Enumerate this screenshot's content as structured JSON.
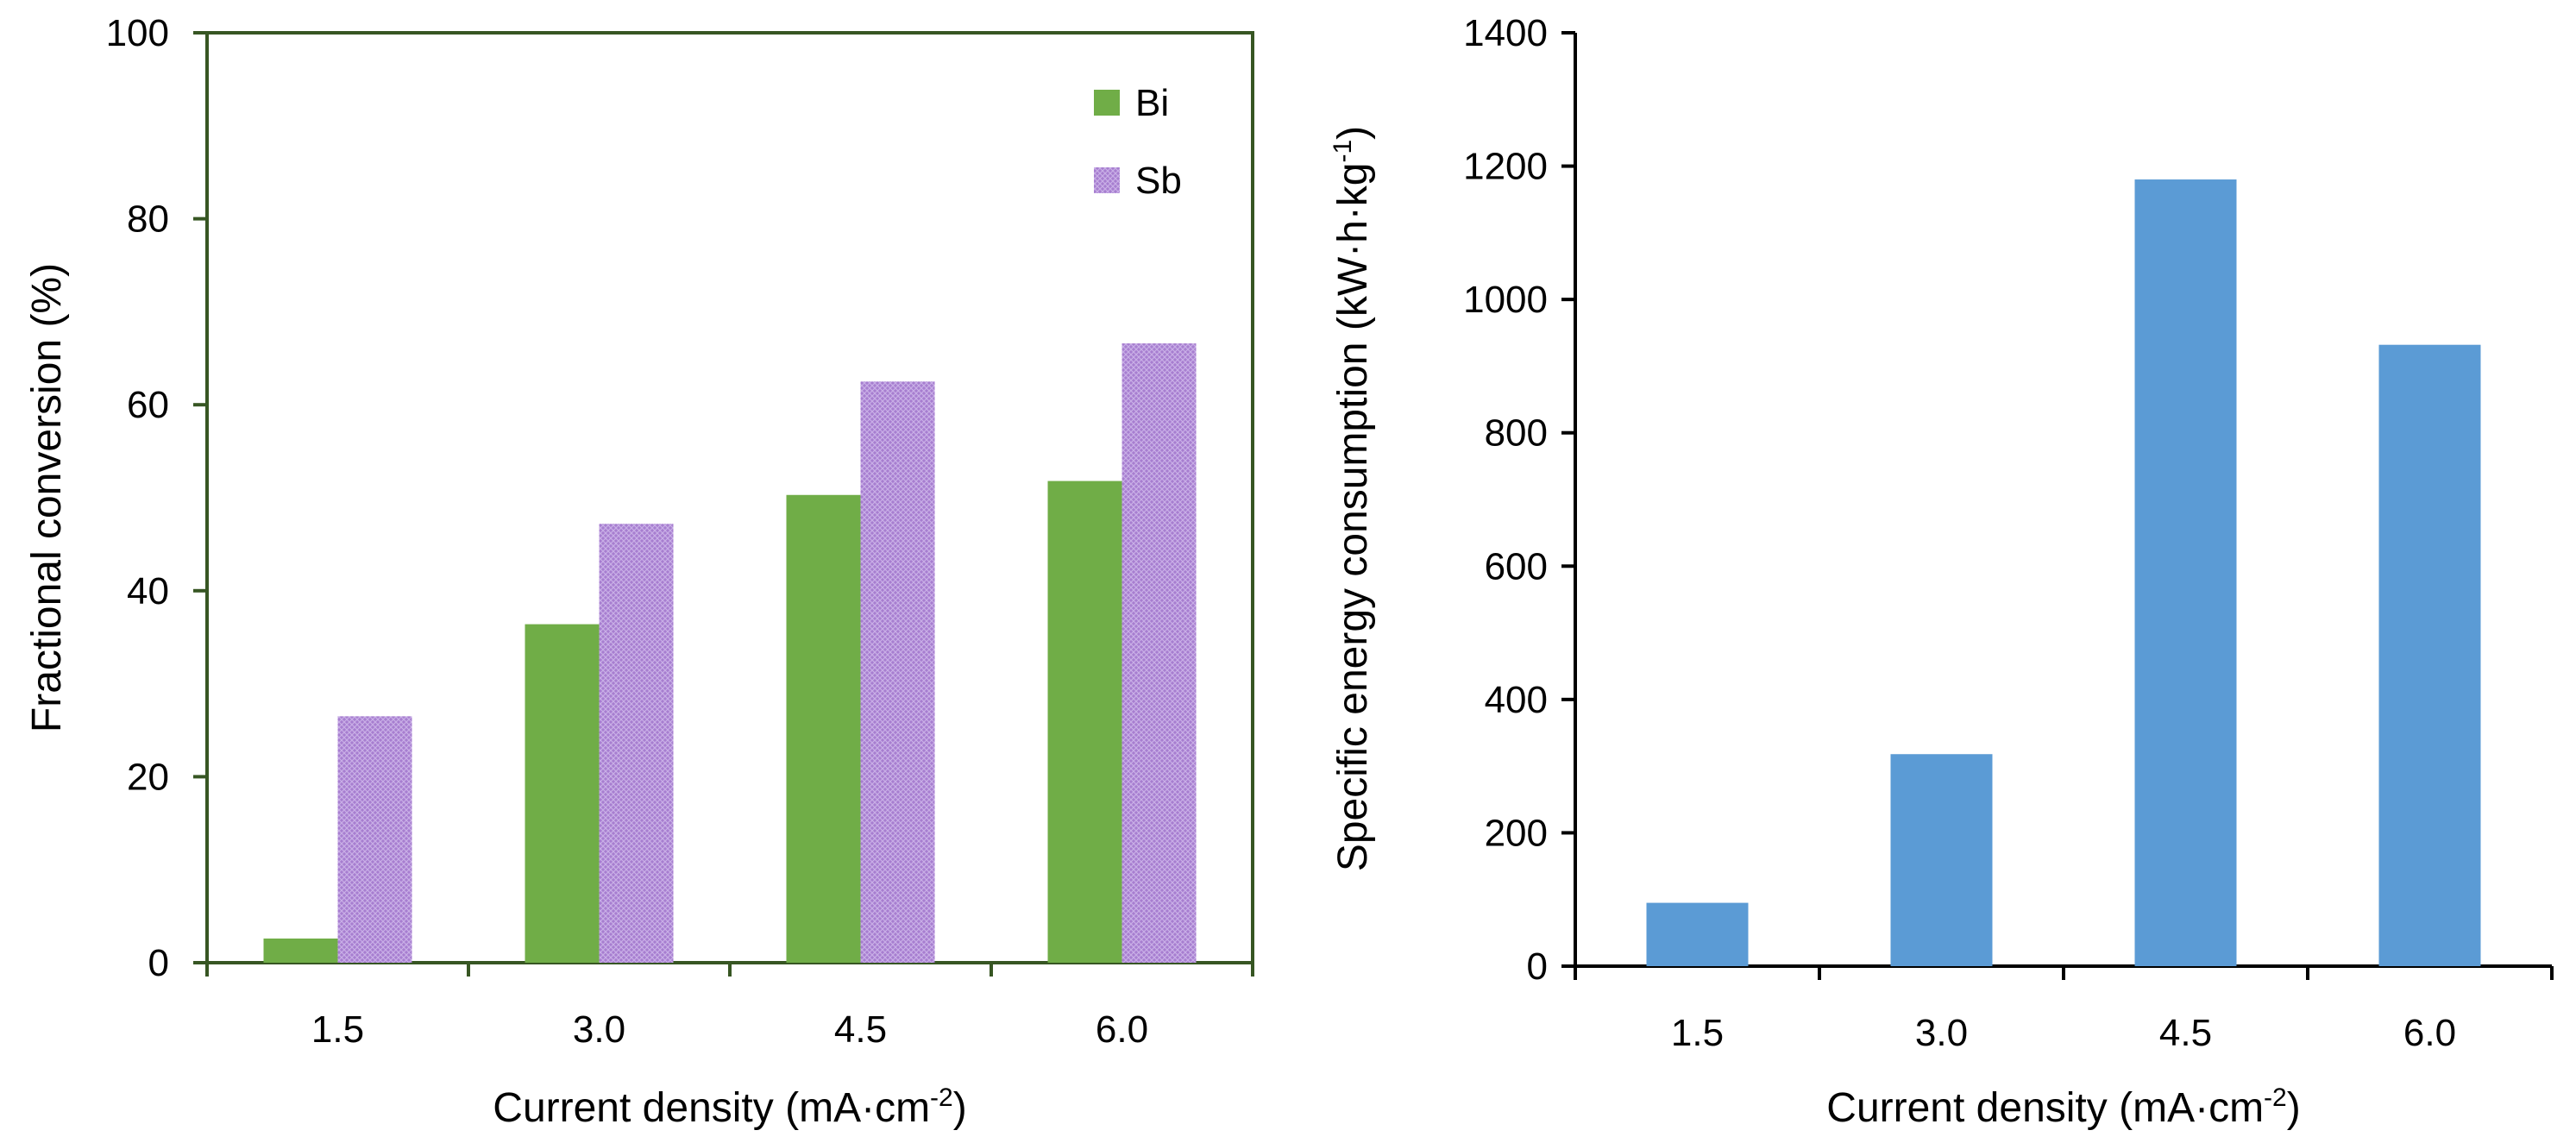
{
  "chart_data": [
    {
      "type": "bar",
      "categories": [
        "1.5",
        "3.0",
        "4.5",
        "6.0"
      ],
      "series": [
        {
          "name": "Bi",
          "values": [
            2.6,
            36.4,
            50.3,
            51.8
          ],
          "color": "#70ad47"
        },
        {
          "name": "Sb",
          "values": [
            26.5,
            47.2,
            62.5,
            66.6
          ],
          "color": "#a77ed0",
          "pattern": "crosshatch"
        }
      ],
      "title": "",
      "xlabel": {
        "main": "Current density (mA·cm",
        "sup": "-2",
        "tail": ")"
      },
      "ylabel": {
        "main": "Fractional conversion (%)",
        "sup": "",
        "tail": ""
      },
      "ylim": [
        0,
        100
      ],
      "yticks": [
        0,
        20,
        40,
        60,
        80,
        100
      ],
      "frame_color": "#375623",
      "grid": false,
      "legend_position": "top-right"
    },
    {
      "type": "bar",
      "categories": [
        "1.5",
        "3.0",
        "4.5",
        "6.0"
      ],
      "series": [
        {
          "name": "Specific energy consumption",
          "values": [
            95,
            318,
            1180,
            932
          ],
          "color": "#5b9bd5"
        }
      ],
      "title": "",
      "xlabel": {
        "main": "Current density (mA·cm",
        "sup": "-2",
        "tail": ")"
      },
      "ylabel": {
        "main": "Specific energy consumption (kW·h·kg",
        "sup": "-1",
        "tail": ")"
      },
      "ylim": [
        0,
        1400
      ],
      "yticks": [
        0,
        200,
        400,
        600,
        800,
        1000,
        1200,
        1400
      ],
      "frame_color": "#000000",
      "grid": false,
      "legend_position": "none"
    }
  ]
}
